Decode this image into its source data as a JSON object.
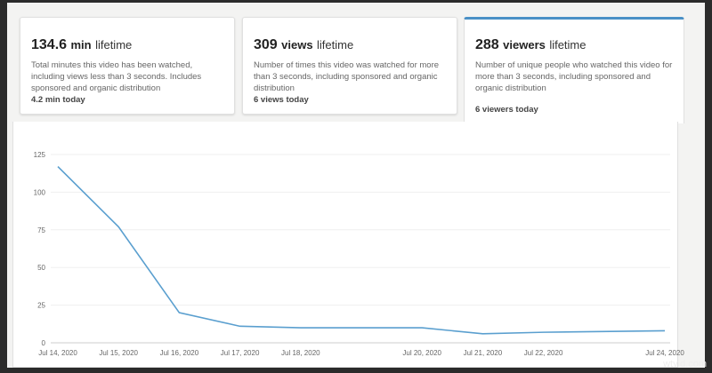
{
  "cards": [
    {
      "value": "134.6",
      "unit": "min",
      "suffix": "lifetime",
      "description": "Total minutes this video has been watched, including views less than 3 seconds. Includes sponsored and organic distribution",
      "today": "4.2 min today",
      "active": false
    },
    {
      "value": "309",
      "unit": "views",
      "suffix": "lifetime",
      "description": "Number of times this video was watched for more than 3 seconds, including sponsored and organic distribution",
      "today": "6 views today",
      "active": false
    },
    {
      "value": "288",
      "unit": "viewers",
      "suffix": "lifetime",
      "description": "Number of unique people who watched this video for more than 3 seconds, including sponsored and organic distribution",
      "today": "6 viewers today",
      "active": true
    }
  ],
  "accent_color": "#4a90c6",
  "chart_data": {
    "type": "line",
    "x": [
      "Jul 14, 2020",
      "Jul 15, 2020",
      "Jul 16, 2020",
      "Jul 17, 2020",
      "Jul 18, 2020",
      "Jul 20, 2020",
      "Jul 21, 2020",
      "Jul 22, 2020",
      "Jul 24, 2020"
    ],
    "x_day_index": [
      14,
      15,
      16,
      17,
      18,
      20,
      21,
      22,
      24
    ],
    "values": [
      117,
      77,
      20,
      11,
      10,
      10,
      6,
      7,
      8
    ],
    "yticks": [
      0,
      25,
      50,
      75,
      100,
      125
    ],
    "ylim": [
      0,
      125
    ],
    "grid": true,
    "line_color": "#5a9fcf"
  },
  "watermark": "wtvid.com"
}
